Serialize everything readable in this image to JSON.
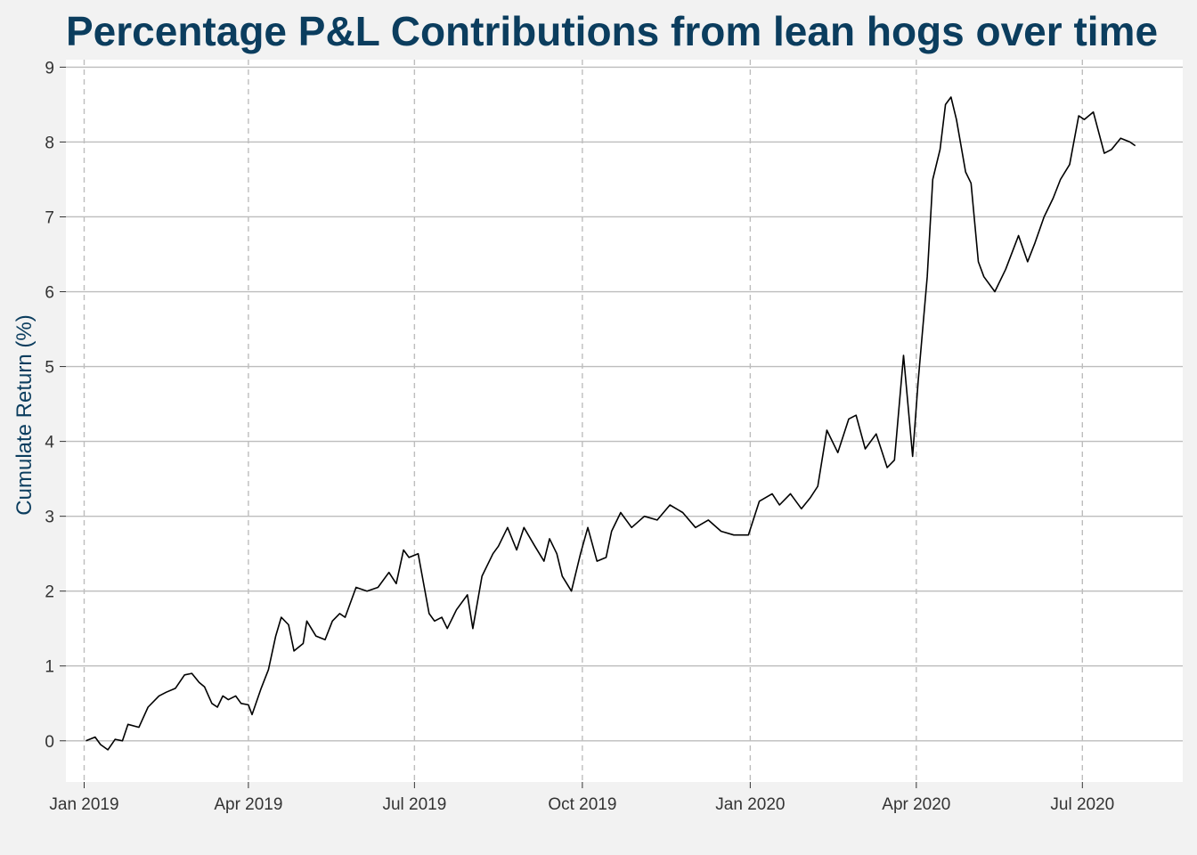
{
  "chart_data": {
    "type": "line",
    "title": "Percentage P&L Contributions from lean hogs over time",
    "xlabel": "",
    "ylabel": "Cumulate Return (%)",
    "x_ticks": [
      "Jan 2019",
      "Apr 2019",
      "Jul 2019",
      "Oct 2019",
      "Jan 2020",
      "Apr 2020",
      "Jul 2020"
    ],
    "x_tick_dates": [
      "2019-01-01",
      "2019-04-01",
      "2019-07-01",
      "2019-10-01",
      "2020-01-01",
      "2020-04-01",
      "2020-07-01"
    ],
    "y_ticks": [
      0,
      1,
      2,
      3,
      4,
      5,
      6,
      7,
      8,
      9
    ],
    "xlim": [
      "2018-12-22",
      "2020-08-25"
    ],
    "ylim": [
      -0.55,
      9.1
    ],
    "grid": {
      "horizontal": "solid",
      "vertical": "dashed"
    },
    "colors": {
      "background": "#f2f2f2",
      "panel": "#ffffff",
      "line": "#000000",
      "title": "#0b3d5e",
      "grid": "#bdbdbd"
    },
    "series": [
      {
        "x": [
          "2019-01-02",
          "2019-01-07",
          "2019-01-10",
          "2019-01-14",
          "2019-01-18",
          "2019-01-22",
          "2019-01-25",
          "2019-01-31",
          "2019-02-05",
          "2019-02-11",
          "2019-02-15",
          "2019-02-20",
          "2019-02-25",
          "2019-03-01",
          "2019-03-05",
          "2019-03-08",
          "2019-03-12",
          "2019-03-15",
          "2019-03-18",
          "2019-03-21",
          "2019-03-25",
          "2019-03-28",
          "2019-04-01",
          "2019-04-03",
          "2019-04-08",
          "2019-04-12",
          "2019-04-16",
          "2019-04-19",
          "2019-04-23",
          "2019-04-26",
          "2019-05-01",
          "2019-05-03",
          "2019-05-08",
          "2019-05-13",
          "2019-05-17",
          "2019-05-21",
          "2019-05-24",
          "2019-05-30",
          "2019-06-05",
          "2019-06-11",
          "2019-06-17",
          "2019-06-21",
          "2019-06-25",
          "2019-06-28",
          "2019-07-03",
          "2019-07-09",
          "2019-07-12",
          "2019-07-16",
          "2019-07-19",
          "2019-07-24",
          "2019-07-30",
          "2019-08-02",
          "2019-08-07",
          "2019-08-13",
          "2019-08-16",
          "2019-08-21",
          "2019-08-26",
          "2019-08-30",
          "2019-09-05",
          "2019-09-10",
          "2019-09-13",
          "2019-09-17",
          "2019-09-20",
          "2019-09-25",
          "2019-09-30",
          "2019-10-04",
          "2019-10-09",
          "2019-10-14",
          "2019-10-17",
          "2019-10-22",
          "2019-10-28",
          "2019-11-04",
          "2019-11-11",
          "2019-11-18",
          "2019-11-25",
          "2019-12-02",
          "2019-12-09",
          "2019-12-16",
          "2019-12-23",
          "2019-12-31",
          "2020-01-06",
          "2020-01-13",
          "2020-01-17",
          "2020-01-23",
          "2020-01-29",
          "2020-02-03",
          "2020-02-07",
          "2020-02-12",
          "2020-02-18",
          "2020-02-24",
          "2020-02-28",
          "2020-03-04",
          "2020-03-10",
          "2020-03-16",
          "2020-03-20",
          "2020-03-25",
          "2020-03-30",
          "2020-04-02",
          "2020-04-07",
          "2020-04-10",
          "2020-04-14",
          "2020-04-17",
          "2020-04-20",
          "2020-04-23",
          "2020-04-28",
          "2020-05-01",
          "2020-05-05",
          "2020-05-08",
          "2020-05-14",
          "2020-05-20",
          "2020-05-27",
          "2020-06-01",
          "2020-06-05",
          "2020-06-10",
          "2020-06-15",
          "2020-06-19",
          "2020-06-24",
          "2020-06-29",
          "2020-07-02",
          "2020-07-07",
          "2020-07-13",
          "2020-07-17",
          "2020-07-22",
          "2020-07-27",
          "2020-07-30"
        ],
        "y": [
          0.0,
          0.05,
          -0.05,
          -0.12,
          0.02,
          0.0,
          0.22,
          0.18,
          0.45,
          0.6,
          0.65,
          0.7,
          0.88,
          0.9,
          0.78,
          0.72,
          0.5,
          0.45,
          0.6,
          0.55,
          0.6,
          0.5,
          0.48,
          0.35,
          0.7,
          0.95,
          1.4,
          1.65,
          1.55,
          1.2,
          1.3,
          1.6,
          1.4,
          1.35,
          1.6,
          1.7,
          1.65,
          2.05,
          2.0,
          2.05,
          2.25,
          2.1,
          2.55,
          2.45,
          2.5,
          1.7,
          1.6,
          1.65,
          1.5,
          1.75,
          1.95,
          1.5,
          2.2,
          2.5,
          2.6,
          2.85,
          2.55,
          2.85,
          2.6,
          2.4,
          2.7,
          2.5,
          2.2,
          2.0,
          2.5,
          2.85,
          2.4,
          2.45,
          2.8,
          3.05,
          2.85,
          3.0,
          2.95,
          3.15,
          3.05,
          2.85,
          2.95,
          2.8,
          2.75,
          2.75,
          3.2,
          3.3,
          3.15,
          3.3,
          3.1,
          3.25,
          3.4,
          4.15,
          3.85,
          4.3,
          4.35,
          3.9,
          4.1,
          3.65,
          3.75,
          5.15,
          3.8,
          4.8,
          6.2,
          7.5,
          7.9,
          8.5,
          8.6,
          8.3,
          7.6,
          7.45,
          6.4,
          6.2,
          6.0,
          6.3,
          6.75,
          6.4,
          6.65,
          7.0,
          7.25,
          7.5,
          7.7,
          8.35,
          8.3,
          8.4,
          7.85,
          7.9,
          8.05,
          8.0,
          7.95
        ]
      }
    ]
  }
}
